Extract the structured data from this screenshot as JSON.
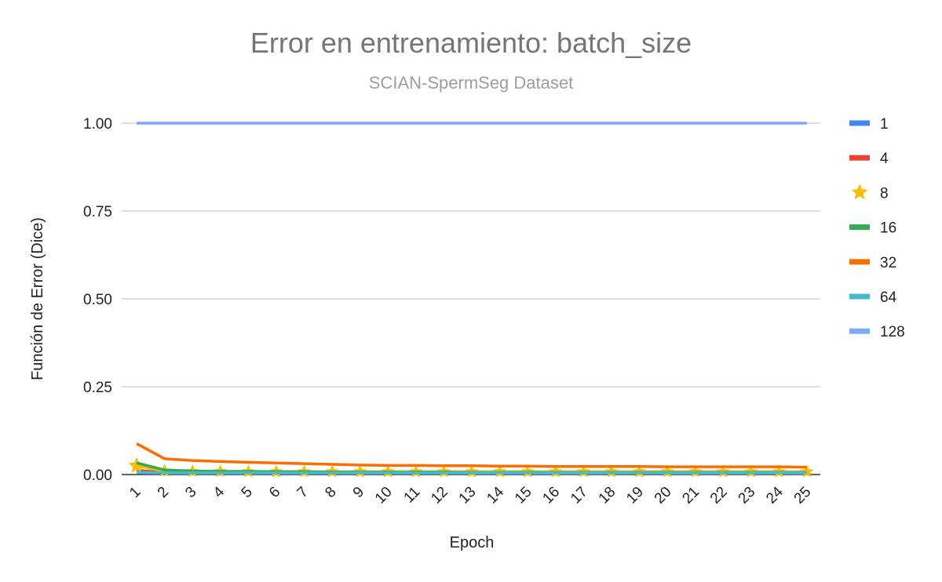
{
  "chart_data": {
    "type": "line",
    "title": "Error en entrenamiento: batch_size",
    "subtitle": "SCIAN-SpermSeg Dataset",
    "xlabel": "Epoch",
    "ylabel": "Función de Error (Dice)",
    "ylim": [
      0,
      1
    ],
    "yticks": [
      "0.00",
      "0.25",
      "0.50",
      "0.75",
      "1.00"
    ],
    "ytick_values": [
      0,
      0.25,
      0.5,
      0.75,
      1.0
    ],
    "categories": [
      "1",
      "2",
      "3",
      "4",
      "5",
      "6",
      "7",
      "8",
      "9",
      "10",
      "11",
      "12",
      "13",
      "14",
      "15",
      "16",
      "17",
      "18",
      "19",
      "20",
      "21",
      "22",
      "23",
      "24",
      "25"
    ],
    "grid": true,
    "legend_position": "right",
    "series": [
      {
        "name": "1",
        "color": "#4285f4",
        "marker": "none",
        "values": [
          0.005,
          0.004,
          0.004,
          0.004,
          0.004,
          0.004,
          0.004,
          0.004,
          0.004,
          0.004,
          0.004,
          0.004,
          0.004,
          0.004,
          0.004,
          0.004,
          0.004,
          0.004,
          0.004,
          0.004,
          0.004,
          0.004,
          0.004,
          0.004,
          0.004
        ]
      },
      {
        "name": "4",
        "color": "#ea4335",
        "marker": "none",
        "values": [
          0.012,
          0.006,
          0.005,
          0.005,
          0.005,
          0.005,
          0.005,
          0.005,
          0.005,
          0.005,
          0.005,
          0.005,
          0.005,
          0.005,
          0.005,
          0.005,
          0.005,
          0.005,
          0.005,
          0.005,
          0.005,
          0.005,
          0.005,
          0.005,
          0.005
        ]
      },
      {
        "name": "8",
        "color": "#fbbc04",
        "marker": "star",
        "values": [
          0.025,
          0.01,
          0.009,
          0.009,
          0.008,
          0.008,
          0.008,
          0.008,
          0.008,
          0.008,
          0.008,
          0.008,
          0.008,
          0.008,
          0.008,
          0.008,
          0.008,
          0.008,
          0.008,
          0.008,
          0.008,
          0.008,
          0.008,
          0.008,
          0.008
        ]
      },
      {
        "name": "16",
        "color": "#34a853",
        "marker": "none",
        "values": [
          0.033,
          0.013,
          0.01,
          0.009,
          0.009,
          0.008,
          0.008,
          0.007,
          0.007,
          0.007,
          0.007,
          0.007,
          0.006,
          0.006,
          0.006,
          0.006,
          0.006,
          0.006,
          0.006,
          0.006,
          0.006,
          0.006,
          0.006,
          0.006,
          0.006
        ]
      },
      {
        "name": "32",
        "color": "#ff6d01",
        "marker": "none",
        "values": [
          0.088,
          0.045,
          0.04,
          0.037,
          0.035,
          0.033,
          0.031,
          0.029,
          0.027,
          0.026,
          0.026,
          0.025,
          0.025,
          0.024,
          0.024,
          0.023,
          0.023,
          0.023,
          0.023,
          0.022,
          0.022,
          0.022,
          0.022,
          0.022,
          0.021
        ]
      },
      {
        "name": "64",
        "color": "#46bdc6",
        "marker": "none",
        "values": [
          0.006,
          0.005,
          0.005,
          0.005,
          0.005,
          0.005,
          0.005,
          0.005,
          0.005,
          0.005,
          0.005,
          0.005,
          0.005,
          0.005,
          0.005,
          0.005,
          0.005,
          0.005,
          0.005,
          0.005,
          0.005,
          0.005,
          0.005,
          0.005,
          0.005
        ]
      },
      {
        "name": "128",
        "color": "#7baaf7",
        "marker": "none",
        "values": [
          1.0,
          1.0,
          1.0,
          1.0,
          1.0,
          1.0,
          1.0,
          1.0,
          1.0,
          1.0,
          1.0,
          1.0,
          1.0,
          1.0,
          1.0,
          1.0,
          1.0,
          1.0,
          1.0,
          1.0,
          1.0,
          1.0,
          1.0,
          1.0,
          1.0
        ]
      }
    ]
  }
}
